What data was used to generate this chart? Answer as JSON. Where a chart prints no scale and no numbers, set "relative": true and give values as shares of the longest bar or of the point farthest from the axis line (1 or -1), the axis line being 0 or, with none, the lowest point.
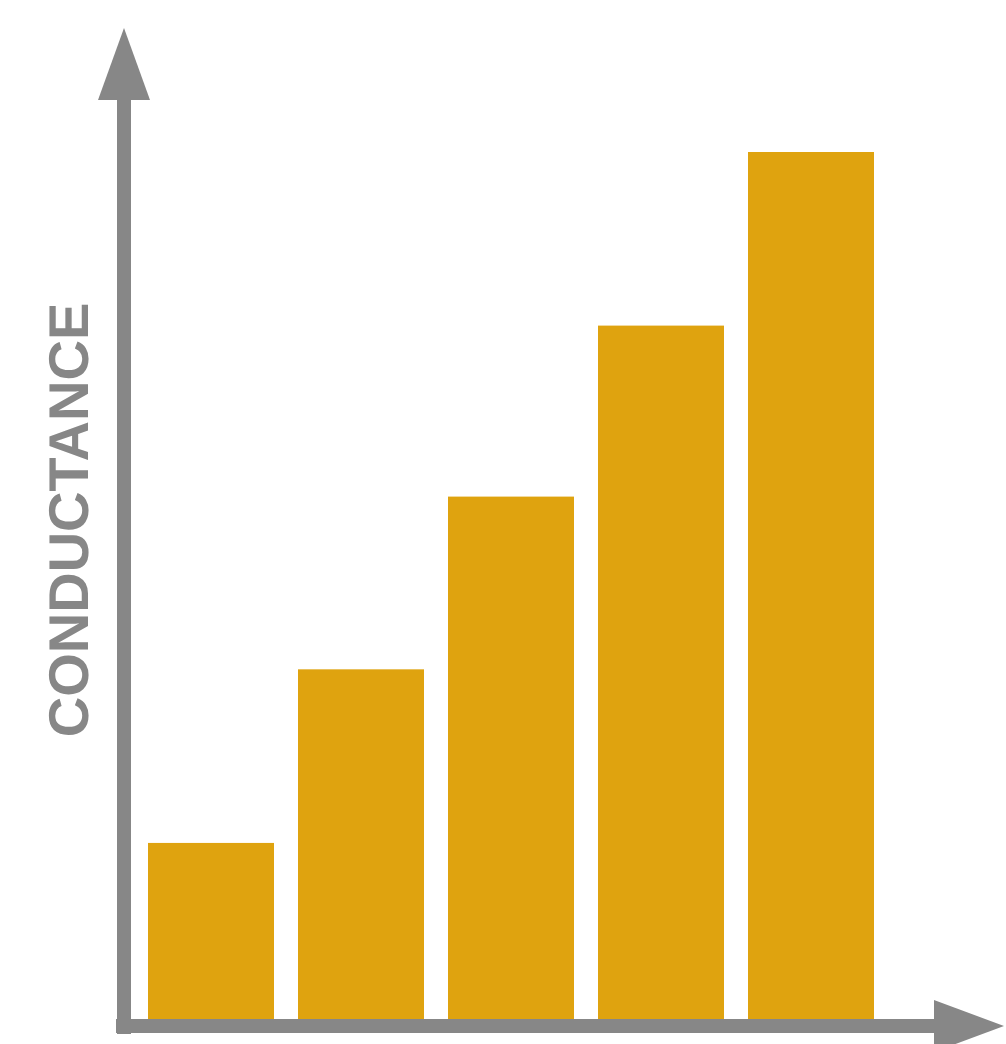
{
  "chart_data": {
    "type": "bar",
    "ylabel": "CONDUCTANCE",
    "relative": true,
    "categories": [
      null,
      null,
      null,
      null,
      null
    ],
    "series": [
      {
        "color": "#dfa30f",
        "values": [
          0.204,
          0.404,
          0.603,
          0.8,
          1
        ]
      }
    ]
  }
}
